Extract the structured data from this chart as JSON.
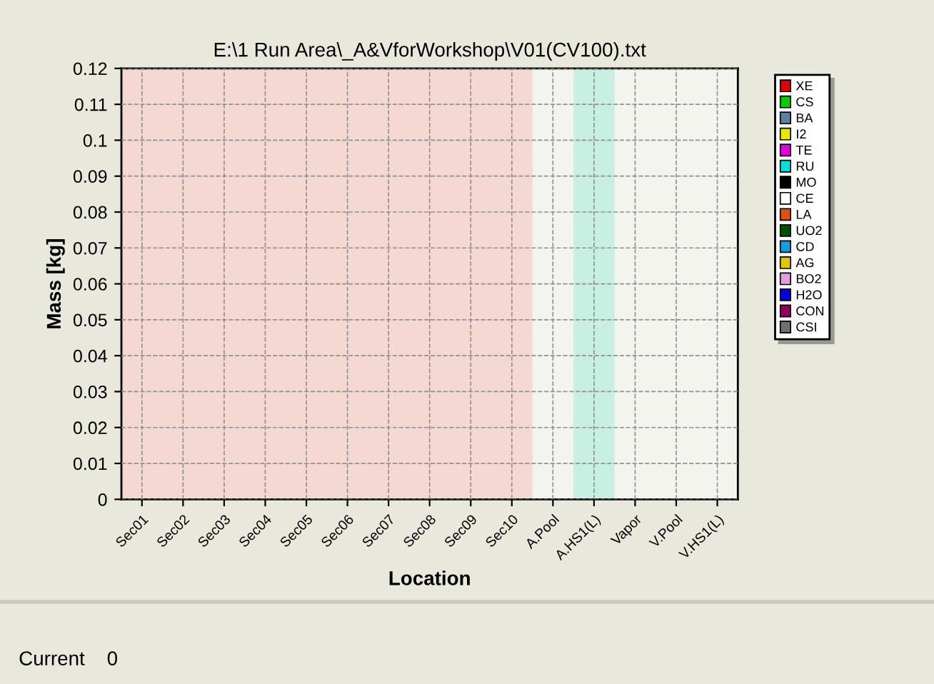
{
  "chart_data": {
    "type": "bar",
    "title": "E:\\1 Run Area\\_A&VforWorkshop\\V01(CV100).txt",
    "xlabel": "Location",
    "ylabel": "Mass [kg]",
    "categories": [
      "Sec01",
      "Sec02",
      "Sec03",
      "Sec04",
      "Sec05",
      "Sec06",
      "Sec07",
      "Sec08",
      "Sec09",
      "Sec10",
      "A.Pool",
      "A.HS1(L)",
      "Vapor",
      "V.Pool",
      "V.HS1(L)"
    ],
    "series": [
      {
        "name": "XE",
        "color": "#e00000",
        "values": [
          0,
          0,
          0,
          0,
          0,
          0,
          0,
          0,
          0,
          0,
          0,
          0,
          0,
          0,
          0
        ]
      },
      {
        "name": "CS",
        "color": "#00d000",
        "values": [
          0,
          0,
          0,
          0,
          0,
          0,
          0,
          0,
          0,
          0,
          0,
          0,
          0,
          0,
          0
        ]
      },
      {
        "name": "BA",
        "color": "#6080a0",
        "values": [
          0,
          0,
          0,
          0,
          0,
          0,
          0,
          0,
          0,
          0,
          0,
          0,
          0,
          0,
          0
        ]
      },
      {
        "name": "I2",
        "color": "#e8e800",
        "values": [
          0,
          0,
          0,
          0,
          0,
          0,
          0,
          0,
          0,
          0,
          0,
          0,
          0,
          0,
          0
        ]
      },
      {
        "name": "TE",
        "color": "#e000e0",
        "values": [
          0,
          0,
          0,
          0,
          0,
          0,
          0,
          0,
          0,
          0,
          0,
          0,
          0,
          0,
          0
        ]
      },
      {
        "name": "RU",
        "color": "#00e0e0",
        "values": [
          0,
          0,
          0,
          0,
          0,
          0,
          0,
          0,
          0,
          0,
          0,
          0,
          0,
          0,
          0
        ]
      },
      {
        "name": "MO",
        "color": "#000000",
        "values": [
          0,
          0,
          0,
          0,
          0,
          0,
          0,
          0,
          0,
          0,
          0,
          0,
          0,
          0,
          0
        ]
      },
      {
        "name": "CE",
        "color": "#ffffff",
        "values": [
          0,
          0,
          0,
          0,
          0,
          0,
          0,
          0,
          0,
          0,
          0,
          0,
          0,
          0,
          0
        ]
      },
      {
        "name": "LA",
        "color": "#e05010",
        "values": [
          0,
          0,
          0,
          0,
          0,
          0,
          0,
          0,
          0,
          0,
          0,
          0,
          0,
          0,
          0
        ]
      },
      {
        "name": "UO2",
        "color": "#005000",
        "values": [
          0,
          0,
          0,
          0,
          0,
          0,
          0,
          0,
          0,
          0,
          0,
          0,
          0,
          0,
          0
        ]
      },
      {
        "name": "CD",
        "color": "#10a0e0",
        "values": [
          0,
          0,
          0,
          0,
          0,
          0,
          0,
          0,
          0,
          0,
          0,
          0,
          0,
          0,
          0
        ]
      },
      {
        "name": "AG",
        "color": "#e0c800",
        "values": [
          0,
          0,
          0,
          0,
          0,
          0,
          0,
          0,
          0,
          0,
          0,
          0,
          0,
          0,
          0
        ]
      },
      {
        "name": "BO2",
        "color": "#e0a0e0",
        "values": [
          0,
          0,
          0,
          0,
          0,
          0,
          0,
          0,
          0,
          0,
          0,
          0,
          0,
          0,
          0
        ]
      },
      {
        "name": "H2O",
        "color": "#0000e0",
        "values": [
          0,
          0,
          0,
          0,
          0,
          0,
          0,
          0,
          0,
          0,
          0,
          0,
          0,
          0,
          0
        ]
      },
      {
        "name": "CON",
        "color": "#900060",
        "values": [
          0,
          0,
          0,
          0,
          0,
          0,
          0,
          0,
          0,
          0,
          0,
          0,
          0,
          0,
          0
        ]
      },
      {
        "name": "CSI",
        "color": "#707070",
        "values": [
          0,
          0,
          0,
          0,
          0,
          0,
          0,
          0,
          0,
          0,
          0,
          0,
          0,
          0,
          0
        ]
      }
    ],
    "ylim": [
      0,
      0.12
    ],
    "yticks": [
      0,
      0.01,
      0.02,
      0.03,
      0.04,
      0.05,
      0.06,
      0.07,
      0.08,
      0.09,
      0.1,
      0.11,
      0.12
    ],
    "bands": [
      {
        "axis": "x",
        "from": "Sec01",
        "to": "Sec10",
        "color": "#f6d8d2"
      },
      {
        "axis": "x",
        "from": "A.HS1(L)",
        "to": "A.HS1(L)",
        "color": "#c8f0e2"
      }
    ],
    "grid": true,
    "legend": "right",
    "annotations": [
      "Current    0"
    ]
  }
}
